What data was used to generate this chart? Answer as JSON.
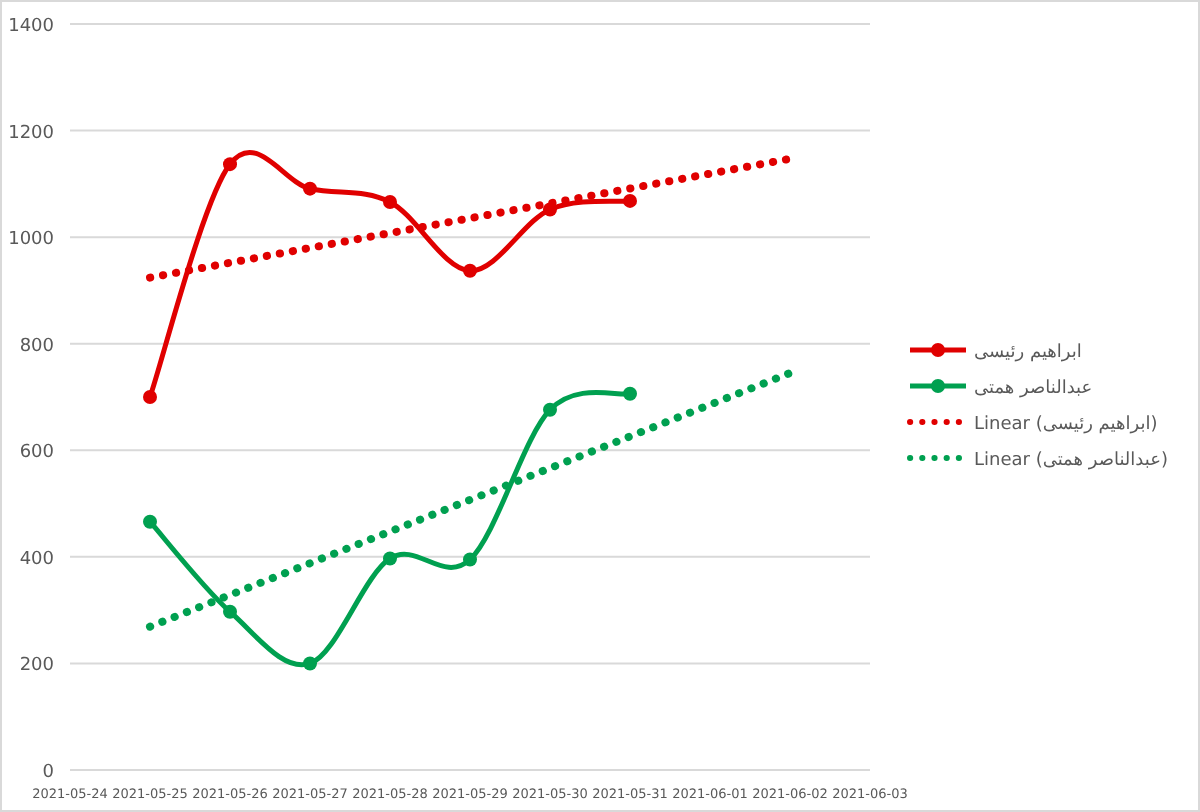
{
  "chart_data": {
    "type": "line",
    "x": [
      "2021-05-25",
      "2021-05-26",
      "2021-05-27",
      "2021-05-28",
      "2021-05-29",
      "2021-05-30",
      "2021-05-31"
    ],
    "series": [
      {
        "name": "ابراهیم رئیسی",
        "color": "#e00000",
        "marker": "circle",
        "line_style": "solid",
        "values": [
          700,
          1137,
          1091,
          1066,
          937,
          1052,
          1068
        ]
      },
      {
        "name": "عبدالناصر همتی",
        "color": "#00a050",
        "marker": "circle",
        "line_style": "solid",
        "values": [
          466,
          297,
          200,
          397,
          395,
          676,
          706
        ]
      },
      {
        "name": "Linear (ابراهیم رئیسی)",
        "color": "#e00000",
        "marker": "none",
        "line_style": "dotted",
        "x": [
          "2021-05-25",
          "2021-06-02"
        ],
        "values": [
          924,
          1147
        ]
      },
      {
        "name": "Linear (عبدالناصر همتی)",
        "color": "#00a050",
        "marker": "none",
        "line_style": "dotted",
        "x": [
          "2021-05-25",
          "2021-06-02"
        ],
        "values": [
          269,
          745
        ]
      }
    ],
    "xlim": [
      "2021-05-24",
      "2021-06-03"
    ],
    "xticks": [
      "2021-05-24",
      "2021-05-25",
      "2021-05-26",
      "2021-05-27",
      "2021-05-28",
      "2021-05-29",
      "2021-05-30",
      "2021-05-31",
      "2021-06-01",
      "2021-06-02",
      "2021-06-03"
    ],
    "ylim": [
      0,
      1400
    ],
    "yticks": [
      0,
      200,
      400,
      600,
      800,
      1000,
      1200,
      1400
    ],
    "grid": "y",
    "legend": "right"
  }
}
